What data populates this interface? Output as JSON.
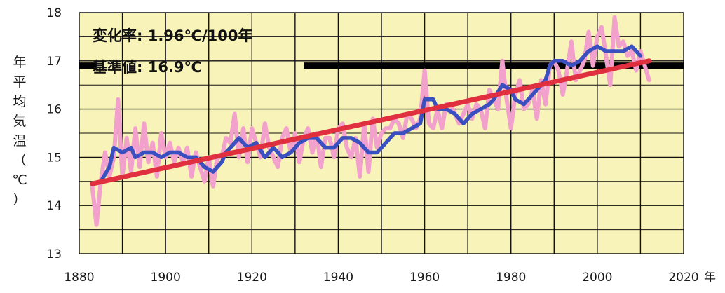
{
  "chart_data": {
    "type": "line",
    "title": "",
    "xlabel": "年",
    "ylabel_chars": [
      "年",
      "平",
      "均",
      "気",
      "温",
      "（",
      "℃",
      "）"
    ],
    "xlim": [
      1880,
      2020
    ],
    "ylim": [
      13,
      18
    ],
    "x_ticks": [
      1880,
      1900,
      1920,
      1940,
      1960,
      1980,
      2000,
      2020
    ],
    "y_ticks": [
      13,
      14,
      15,
      16,
      17,
      18
    ],
    "grid": true,
    "annotations": [
      "変化率: 1.96℃/100年",
      "基準値: 16.9℃"
    ],
    "baseline": {
      "value": 16.9,
      "break_from": 1884,
      "break_to": 1932
    },
    "colors": {
      "background": "#f8f3b8",
      "grid": "#111111",
      "annual": "#f2a0cc",
      "moving_average": "#3a4fc0",
      "trend": "#e03040",
      "baseline": "#000000"
    },
    "series": [
      {
        "role": "annual",
        "x": [
          1883,
          1884,
          1885,
          1886,
          1887,
          1888,
          1889,
          1890,
          1891,
          1892,
          1893,
          1894,
          1895,
          1896,
          1897,
          1898,
          1899,
          1900,
          1901,
          1902,
          1903,
          1904,
          1905,
          1906,
          1907,
          1908,
          1909,
          1910,
          1911,
          1912,
          1913,
          1914,
          1915,
          1916,
          1917,
          1918,
          1919,
          1920,
          1921,
          1922,
          1923,
          1924,
          1925,
          1926,
          1927,
          1928,
          1929,
          1930,
          1931,
          1932,
          1933,
          1934,
          1935,
          1936,
          1937,
          1938,
          1939,
          1940,
          1941,
          1942,
          1943,
          1944,
          1945,
          1946,
          1947,
          1948,
          1949,
          1950,
          1951,
          1952,
          1953,
          1954,
          1955,
          1956,
          1957,
          1958,
          1959,
          1960,
          1961,
          1962,
          1963,
          1964,
          1965,
          1966,
          1967,
          1968,
          1969,
          1970,
          1971,
          1972,
          1973,
          1974,
          1975,
          1976,
          1977,
          1978,
          1979,
          1980,
          1981,
          1982,
          1983,
          1984,
          1985,
          1986,
          1987,
          1988,
          1989,
          1990,
          1991,
          1992,
          1993,
          1994,
          1995,
          1996,
          1997,
          1998,
          1999,
          2000,
          2001,
          2002,
          2003,
          2004,
          2005,
          2006,
          2007,
          2008,
          2009,
          2010,
          2011,
          2012
        ],
        "y": [
          14.4,
          13.6,
          14.5,
          15.1,
          14.6,
          15.0,
          16.2,
          14.6,
          15.4,
          14.7,
          15.6,
          14.8,
          15.7,
          14.9,
          15.3,
          14.6,
          15.5,
          15.0,
          15.3,
          14.9,
          15.2,
          14.9,
          15.2,
          14.6,
          15.1,
          14.8,
          14.5,
          15.0,
          14.4,
          15.0,
          15.0,
          15.4,
          15.3,
          15.9,
          15.0,
          15.6,
          14.9,
          15.6,
          15.3,
          15.0,
          15.7,
          15.2,
          15.0,
          14.8,
          15.4,
          15.6,
          15.1,
          15.5,
          14.9,
          15.4,
          15.6,
          15.1,
          15.5,
          14.8,
          15.4,
          15.4,
          15.0,
          15.6,
          15.7,
          15.2,
          15.0,
          15.4,
          14.6,
          15.7,
          14.7,
          15.8,
          15.2,
          15.5,
          15.6,
          15.6,
          15.8,
          15.7,
          15.4,
          15.9,
          15.8,
          15.6,
          15.8,
          16.8,
          15.7,
          15.6,
          16.0,
          15.6,
          16.1,
          16.1,
          15.9,
          15.7,
          15.9,
          16.1,
          15.8,
          16.1,
          16.0,
          15.6,
          16.4,
          16.2,
          16.0,
          17.0,
          16.2,
          15.6,
          16.3,
          16.6,
          16.0,
          16.1,
          16.4,
          15.8,
          16.6,
          16.1,
          16.9,
          17.0,
          16.8,
          16.3,
          16.8,
          17.4,
          16.6,
          16.8,
          17.0,
          17.6,
          16.9,
          17.5,
          17.7,
          17.1,
          16.5,
          17.9,
          17.3,
          17.4,
          17.1,
          17.2,
          16.8,
          17.2,
          16.9,
          16.6
        ]
      },
      {
        "role": "moving_average",
        "x": [
          1885,
          1887,
          1888,
          1890,
          1892,
          1893,
          1895,
          1897,
          1899,
          1901,
          1903,
          1905,
          1907,
          1909,
          1911,
          1913,
          1914,
          1916,
          1917,
          1919,
          1921,
          1923,
          1925,
          1927,
          1929,
          1931,
          1933,
          1935,
          1937,
          1939,
          1941,
          1943,
          1945,
          1947,
          1949,
          1951,
          1953,
          1955,
          1957,
          1959,
          1960,
          1962,
          1963,
          1965,
          1967,
          1969,
          1971,
          1973,
          1975,
          1976,
          1978,
          1980,
          1981,
          1983,
          1985,
          1986,
          1988,
          1989,
          1990,
          1992,
          1994,
          1996,
          1998,
          2000,
          2002,
          2004,
          2006,
          2008,
          2009,
          2010
        ],
        "y": [
          14.5,
          14.8,
          15.2,
          15.1,
          15.2,
          15.0,
          15.1,
          15.1,
          15.0,
          15.1,
          15.1,
          15.0,
          15.0,
          14.8,
          14.7,
          14.9,
          15.1,
          15.3,
          15.4,
          15.2,
          15.3,
          15.0,
          15.2,
          15.0,
          15.1,
          15.3,
          15.4,
          15.4,
          15.2,
          15.2,
          15.4,
          15.4,
          15.3,
          15.1,
          15.1,
          15.3,
          15.5,
          15.5,
          15.6,
          15.7,
          16.2,
          16.2,
          16.0,
          16.0,
          15.9,
          15.7,
          15.9,
          16.0,
          16.1,
          16.2,
          16.5,
          16.4,
          16.2,
          16.1,
          16.3,
          16.4,
          16.6,
          16.9,
          17.0,
          17.0,
          16.9,
          17.0,
          17.2,
          17.3,
          17.2,
          17.2,
          17.2,
          17.3,
          17.2,
          17.1
        ]
      },
      {
        "role": "trend",
        "x": [
          1883,
          2012
        ],
        "y": [
          14.45,
          17.0
        ]
      }
    ]
  }
}
